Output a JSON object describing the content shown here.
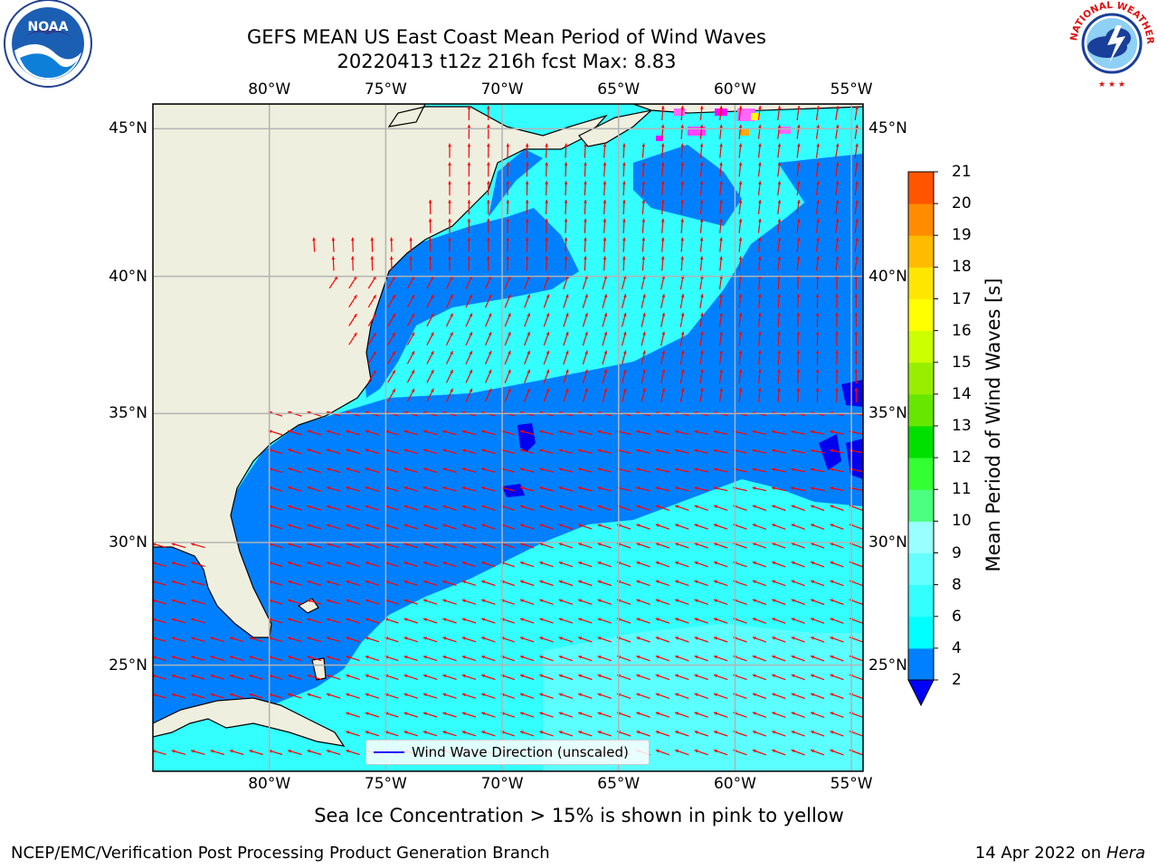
{
  "header": {
    "title_line1": "GEFS MEAN US East Coast Mean Period of Wind Waves",
    "title_line2": "20220413 t12z 216h fcst   Max: 8.83"
  },
  "logos": {
    "left": "NOAA",
    "right": "NATIONAL WEATHER SERVICE"
  },
  "map": {
    "lon_labels": [
      "80°W",
      "75°W",
      "70°W",
      "65°W",
      "60°W",
      "55°W"
    ],
    "lat_labels": [
      "45°N",
      "40°N",
      "35°N",
      "30°N",
      "25°N"
    ],
    "extent": {
      "lon": [
        -85,
        -54.5
      ],
      "lat": [
        20.5,
        45.8
      ]
    },
    "colors": {
      "land": "#efefdf",
      "coast": "#000000",
      "grid": "#b3b3b3",
      "arrow": "#ff0000",
      "ice": "#ff00ff"
    },
    "legend_label": "Wind Wave Direction (unscaled)"
  },
  "colorbar": {
    "label": "Mean Period of Wind Waves [s]",
    "ticks": [
      "2",
      "4",
      "6",
      "8",
      "9",
      "10",
      "11",
      "12",
      "13",
      "14",
      "15",
      "16",
      "17",
      "18",
      "19",
      "20",
      "21"
    ],
    "colors": [
      "#0080ff",
      "#00ffff",
      "#33ffff",
      "#66ffff",
      "#99ffff",
      "#4dff80",
      "#33ff33",
      "#00e000",
      "#66e600",
      "#99ee00",
      "#ccff00",
      "#ffff00",
      "#ffe600",
      "#ffbb00",
      "#ff8c00",
      "#ff5500",
      "#ff2a00",
      "#ff0000"
    ],
    "under_color": "#0000ff"
  },
  "notes": {
    "sea_ice": "Sea Ice Concentration > 15% is shown in pink to yellow"
  },
  "footer": {
    "left": "NCEP/EMC/Verification Post Processing Product Generation Branch",
    "right_date": "14 Apr 2022 on ",
    "right_machine": "Hera"
  }
}
